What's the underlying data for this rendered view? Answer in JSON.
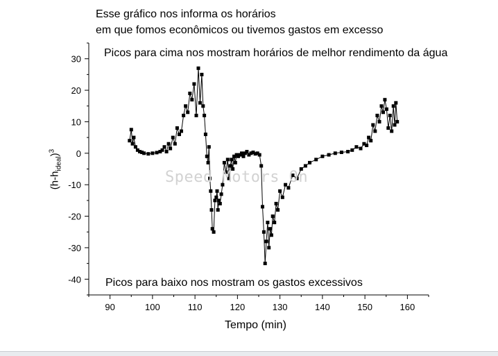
{
  "title_lines": [
    "Esse gráfico nos informa os horários",
    "em que fomos econômicos ou tivemos gastos em excesso"
  ],
  "annotations": {
    "top": "Picos para cima nos mostram horários de melhor rendimento da água",
    "bottom": "Picos para baixo nos mostram os gastos excessivos"
  },
  "watermark": "Speed Motors On",
  "chart_data": {
    "type": "line",
    "xlabel": "Tempo (min)",
    "ylabel": {
      "base": "(h-h",
      "sub": "ideal",
      "close": ")",
      "sup": "3"
    },
    "xlim": [
      85,
      165
    ],
    "ylim": [
      -45,
      35
    ],
    "xticks": [
      90,
      100,
      110,
      120,
      130,
      140,
      150,
      160
    ],
    "yticks": [
      30,
      20,
      10,
      0,
      -10,
      -20,
      -30,
      -40
    ],
    "grid": false,
    "colors": {
      "series": "#000000"
    },
    "series": [
      {
        "marker": "square",
        "x": [
          94.6,
          95.0,
          95.3,
          95.6,
          96.0,
          96.5,
          97.0,
          97.5,
          98.0,
          99.0,
          100.0,
          101.0,
          101.8,
          102.3,
          102.8,
          103.3,
          103.8,
          104.2,
          104.8,
          105.3,
          105.8,
          106.3,
          106.8,
          107.3,
          107.8,
          108.3,
          108.8,
          109.3,
          109.8,
          110.3,
          110.8,
          111.2,
          111.6,
          111.9,
          112.2,
          112.5,
          112.8,
          113.1,
          113.3,
          113.5,
          113.7,
          113.9,
          114.1,
          114.4,
          114.7,
          115.0,
          115.2,
          115.4,
          115.6,
          115.9,
          116.2,
          116.5,
          116.9,
          117.3,
          117.7,
          118.0,
          118.3,
          118.6,
          118.9,
          119.2,
          119.5,
          119.8,
          120.2,
          120.6,
          121.0,
          121.4,
          121.8,
          122.2,
          122.7,
          123.2,
          123.7,
          124.2,
          124.7,
          125.2,
          125.6,
          125.9,
          126.2,
          126.5,
          126.8,
          127.1,
          127.4,
          127.7,
          128.0,
          128.3,
          128.7,
          129.1,
          129.5,
          130.0,
          130.6,
          131.3,
          132.0,
          133.0,
          134.0,
          135.0,
          136.0,
          137.0,
          138.5,
          140.0,
          141.5,
          143.0,
          144.5,
          146.0,
          147.0,
          148.0,
          149.0,
          149.8,
          150.4,
          150.9,
          151.4,
          151.9,
          152.4,
          152.9,
          153.4,
          153.9,
          154.3,
          154.7,
          155.1,
          155.5,
          155.9,
          156.3,
          156.7,
          157.0,
          157.3,
          157.6
        ],
        "y": [
          4,
          7.5,
          3,
          5,
          2,
          1,
          0.5,
          0.3,
          0,
          -0.2,
          0,
          0.2,
          0.5,
          1,
          2,
          0.5,
          3,
          1.5,
          5,
          3,
          8,
          6,
          7,
          12,
          15,
          13,
          19,
          17,
          22,
          12,
          27,
          16,
          25,
          15,
          12,
          6,
          -1,
          -3,
          2,
          -8,
          -12,
          -18,
          -24,
          -25,
          -15,
          -14,
          -12,
          -18,
          -15,
          -16,
          -13,
          -10,
          -3,
          -6,
          -2,
          -8,
          -4,
          -2,
          -5,
          -1,
          -3,
          -0.5,
          -1,
          -0.5,
          0,
          -1,
          0,
          0.5,
          -0.5,
          0,
          0.3,
          -0.2,
          0,
          -0.5,
          -4,
          -17,
          -25,
          -35,
          -28,
          -22,
          -30,
          -24,
          -26,
          -20,
          -22,
          -16,
          -18,
          -12,
          -14,
          -10,
          -11,
          -7,
          -8,
          -5,
          -4,
          -3,
          -2,
          -1,
          -0.5,
          0,
          0.3,
          0.5,
          1,
          2,
          1.5,
          3,
          2.5,
          5,
          4,
          9,
          7,
          12,
          10,
          15,
          13,
          17,
          14,
          8,
          12,
          7,
          15,
          9,
          16,
          10
        ]
      }
    ]
  }
}
